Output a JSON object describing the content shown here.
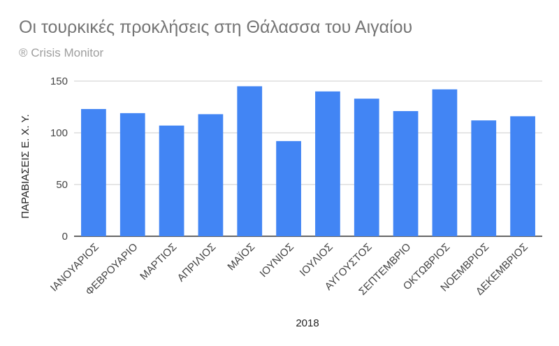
{
  "title": "Οι τουρκικές προκλήσεις στη Θάλασσα του Αιγαίου",
  "subtitle": "® Crisis Monitor",
  "colors": {
    "bar": "#4285f4",
    "grid": "#cccccc",
    "title": "#757575",
    "subtitle": "#9e9e9e"
  },
  "chart_data": {
    "type": "bar",
    "title": "Οι τουρκικές προκλήσεις στη Θάλασσα του Αιγαίου",
    "subtitle": "® Crisis Monitor",
    "xlabel": "2018",
    "ylabel": "ΠΑΡΑΒΙΑΣΕΙΣ Ε. Χ. Υ.",
    "ylim": [
      0,
      150
    ],
    "yticks": [
      0,
      50,
      100,
      150
    ],
    "grid": true,
    "legend": "none",
    "categories": [
      "ΙΑΝΟΥΑΡΙΟΣ",
      "ΦΕΒΡΟΥΑΡΙΟ",
      "ΜΑΡΤΙΟΣ",
      "ΑΠΡΙΛΙΟΣ",
      "ΜΑΪΟΣ",
      "ΙΟΥΝΙΟΣ",
      "ΙΟΥΛΙΟΣ",
      "ΑΥΓΟΥΣΤΟΣ",
      "ΣΕΠΤΕΜΒΡΙΟ",
      "ΟΚΤΩΒΡΙΟΣ",
      "ΝΟΕΜΒΡΙΟΣ",
      "ΔΕΚΕΜΒΡΙΟΣ"
    ],
    "values": [
      123,
      119,
      107,
      118,
      145,
      92,
      140,
      133,
      121,
      142,
      112,
      116
    ]
  }
}
